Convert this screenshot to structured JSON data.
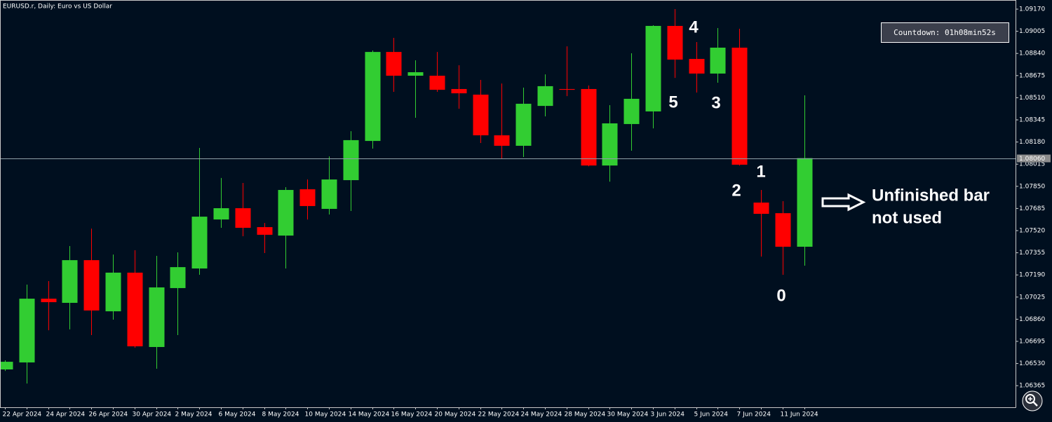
{
  "chart_data": {
    "type": "candlestick",
    "title": "EURUSD.r, Daily: Euro vs US Dollar",
    "categories": [
      "22 Apr 2024",
      null,
      "24 Apr 2024",
      null,
      "26 Apr 2024",
      null,
      "30 Apr 2024",
      null,
      "2 May 2024",
      null,
      "6 May 2024",
      null,
      "8 May 2024",
      null,
      "10 May 2024",
      null,
      "14 May 2024",
      null,
      "16 May 2024",
      null,
      "20 May 2024",
      null,
      "22 May 2024",
      null,
      "24 May 2024",
      null,
      "28 May 2024",
      null,
      "30 May 2024",
      null,
      "3 Jun 2024",
      null,
      "5 Jun 2024",
      null,
      "7 Jun 2024",
      null,
      "11 Jun 2024",
      null
    ],
    "open": [
      1.06486,
      1.06538,
      1.07013,
      1.06982,
      1.073,
      1.06919,
      1.07207,
      1.06653,
      1.07092,
      1.07238,
      1.07603,
      1.07687,
      1.07546,
      1.07483,
      1.07828,
      1.07682,
      1.07896,
      1.08188,
      1.08851,
      1.08674,
      1.08674,
      1.08575,
      1.08533,
      1.0823,
      1.08152,
      1.08449,
      1.08575,
      1.08575,
      1.08005,
      1.08314,
      1.08408,
      1.09045,
      1.08799,
      1.0869,
      1.08883,
      1.07729,
      1.0765,
      1.074
    ],
    "high": [
      1.06554,
      1.07118,
      1.07144,
      1.07405,
      1.07535,
      1.07342,
      1.07374,
      1.07332,
      1.07358,
      1.08136,
      1.07912,
      1.07875,
      1.07577,
      1.07844,
      1.07901,
      1.08073,
      1.08261,
      1.08862,
      1.08956,
      1.08789,
      1.08851,
      1.08752,
      1.08643,
      1.08616,
      1.08585,
      1.08684,
      1.08893,
      1.08601,
      1.08455,
      1.08841,
      1.0905,
      1.0917,
      1.08925,
      1.09029,
      1.09024,
      1.07823,
      1.07739,
      1.08528
    ],
    "low": [
      1.06475,
      1.06381,
      1.06778,
      1.06784,
      1.06742,
      1.06857,
      1.06648,
      1.06491,
      1.06742,
      1.07191,
      1.07541,
      1.07478,
      1.07353,
      1.07238,
      1.07603,
      1.0764,
      1.07666,
      1.08131,
      1.08554,
      1.08361,
      1.08554,
      1.08428,
      1.08173,
      1.08053,
      1.08068,
      1.08371,
      1.08522,
      1.07999,
      1.07885,
      1.08115,
      1.08282,
      1.08658,
      1.08549,
      1.08622,
      1.08005,
      1.07327,
      1.07191,
      1.07259
    ],
    "close": [
      1.06543,
      1.07013,
      1.06987,
      1.073,
      1.06925,
      1.07207,
      1.06658,
      1.07097,
      1.07248,
      1.07624,
      1.07687,
      1.07541,
      1.07489,
      1.07823,
      1.07703,
      1.07901,
      1.08194,
      1.08851,
      1.08674,
      1.087,
      1.08569,
      1.08543,
      1.0823,
      1.08152,
      1.08465,
      1.08596,
      1.08569,
      1.08005,
      1.08319,
      1.08502,
      1.09045,
      1.08794,
      1.0869,
      1.08883,
      1.08011,
      1.07645,
      1.074,
      1.0806
    ],
    "up_color": "#32cd32",
    "down_color": "#ff0000",
    "ylim": [
      1.06204,
      1.09238
    ],
    "yticks": [
      {
        "value": 1.0917,
        "label": "1.09170"
      },
      {
        "value": 1.09005,
        "label": "1.09005"
      },
      {
        "value": 1.0884,
        "label": "1.08840"
      },
      {
        "value": 1.08675,
        "label": "1.08675"
      },
      {
        "value": 1.0851,
        "label": "1.08510"
      },
      {
        "value": 1.08345,
        "label": "1.08345"
      },
      {
        "value": 1.0818,
        "label": "1.08180"
      },
      {
        "value": 1.08015,
        "label": "1.08015"
      },
      {
        "value": 1.0785,
        "label": "1.07850"
      },
      {
        "value": 1.07685,
        "label": "1.07685"
      },
      {
        "value": 1.0752,
        "label": "1.07520"
      },
      {
        "value": 1.07355,
        "label": "1.07355"
      },
      {
        "value": 1.0719,
        "label": "1.07190"
      },
      {
        "value": 1.07025,
        "label": "1.07025"
      },
      {
        "value": 1.0686,
        "label": "1.06860"
      },
      {
        "value": 1.06695,
        "label": "1.06695"
      },
      {
        "value": 1.0653,
        "label": "1.06530"
      },
      {
        "value": 1.06365,
        "label": "1.06365"
      }
    ],
    "current_price": {
      "value": 1.0806,
      "label": "1.08060"
    },
    "grid": false,
    "countdown": "Countdown: 01h08min52s",
    "wave_labels": [
      "4",
      "5",
      "3",
      "1",
      "2",
      "0"
    ],
    "note": [
      "Unfinished bar",
      "not used"
    ]
  }
}
